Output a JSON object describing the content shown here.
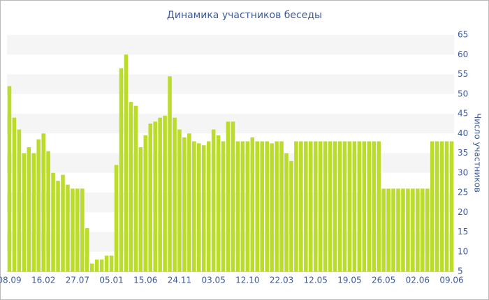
{
  "chart_data": {
    "type": "bar",
    "title": "Динамика участников беседы",
    "y_label": "Число участников",
    "categories": [
      "08.09",
      null,
      null,
      null,
      null,
      null,
      null,
      "16.02",
      null,
      null,
      null,
      null,
      null,
      null,
      "27.07",
      null,
      null,
      null,
      null,
      null,
      null,
      "05.01",
      null,
      null,
      null,
      null,
      null,
      null,
      "15.06",
      null,
      null,
      null,
      null,
      null,
      null,
      "24.11",
      null,
      null,
      null,
      null,
      null,
      null,
      "03.05",
      null,
      null,
      null,
      null,
      null,
      null,
      "12.10",
      null,
      null,
      null,
      null,
      null,
      null,
      "22.03",
      null,
      null,
      null,
      null,
      null,
      null,
      "12.05",
      null,
      null,
      null,
      null,
      null,
      null,
      "19.05",
      null,
      null,
      null,
      null,
      null,
      null,
      "26.05",
      null,
      null,
      null,
      null,
      null,
      null,
      "02.06",
      null,
      null,
      null,
      null,
      null,
      null,
      "09.06"
    ],
    "values": [
      52,
      44,
      41,
      35,
      36.5,
      35,
      38.5,
      40,
      35.5,
      30,
      28,
      29.5,
      27,
      26,
      26,
      26,
      16,
      7,
      8,
      8,
      9,
      9,
      32,
      56.5,
      60,
      48,
      47,
      36.5,
      39.5,
      42.5,
      43,
      44,
      44.5,
      54.5,
      44,
      41,
      39,
      40,
      38,
      37.5,
      37,
      38,
      41,
      39.5,
      38,
      43,
      43,
      38,
      38,
      38,
      39,
      38,
      38,
      38,
      37.5,
      38,
      38,
      35,
      33,
      38,
      38,
      38,
      38,
      38,
      38,
      38,
      38,
      38,
      38,
      38,
      38,
      38,
      38,
      38,
      38,
      38,
      38,
      26,
      26,
      26,
      26,
      26,
      26,
      26,
      26,
      26,
      26,
      38,
      38,
      38,
      38,
      38
    ],
    "color": "#bcdc2c",
    "ylim": [
      5,
      65
    ],
    "yticks": [
      5,
      10,
      15,
      20,
      25,
      30,
      35,
      40,
      45,
      50,
      55,
      60,
      65
    ],
    "grid": true
  }
}
